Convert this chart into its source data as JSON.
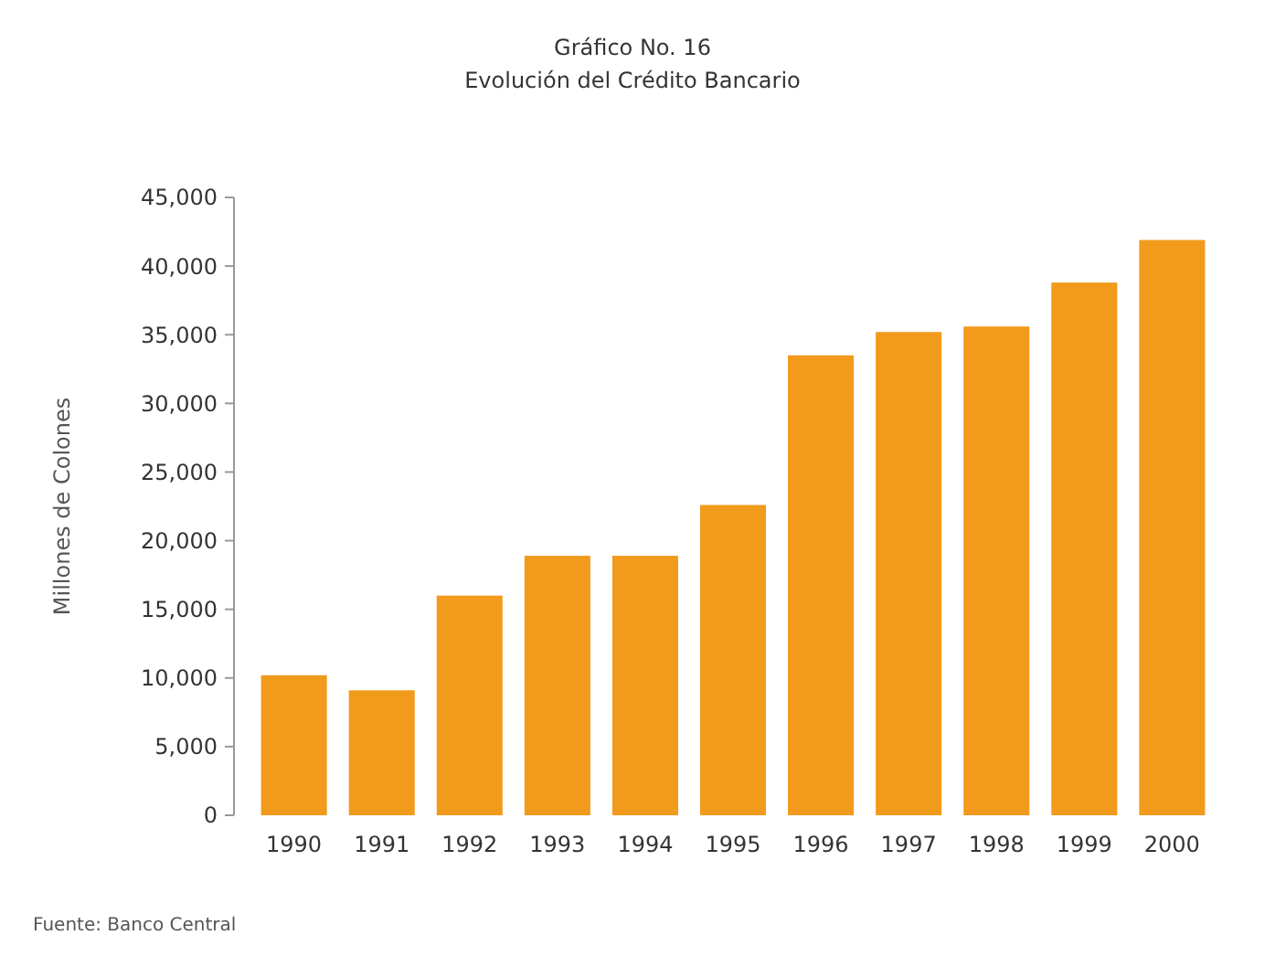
{
  "chart_data": {
    "type": "bar",
    "title": "Gráfico No. 16",
    "subtitle": "Evolución del Crédito Bancario",
    "ylabel": "Millones de Colones",
    "categories": [
      "1990",
      "1991",
      "1992",
      "1993",
      "1994",
      "1995",
      "1996",
      "1997",
      "1998",
      "1999",
      "2000"
    ],
    "values": [
      10200,
      9100,
      16000,
      18900,
      18900,
      22600,
      33500,
      35200,
      35600,
      38800,
      41900
    ],
    "color": "#f29a1c",
    "ylim": [
      0,
      45000
    ],
    "yticks": [
      {
        "value": 0,
        "label": "0"
      },
      {
        "value": 5000,
        "label": "5,000"
      },
      {
        "value": 10000,
        "label": "10,000"
      },
      {
        "value": 15000,
        "label": "15,000"
      },
      {
        "value": 20000,
        "label": "20,000"
      },
      {
        "value": 25000,
        "label": "25,000"
      },
      {
        "value": 30000,
        "label": "30,000"
      },
      {
        "value": 35000,
        "label": "35,000"
      },
      {
        "value": 40000,
        "label": "40,000"
      },
      {
        "value": 45000,
        "label": "45,000"
      }
    ],
    "grid": false,
    "annotations": [
      "Fuente: Banco Central"
    ]
  }
}
